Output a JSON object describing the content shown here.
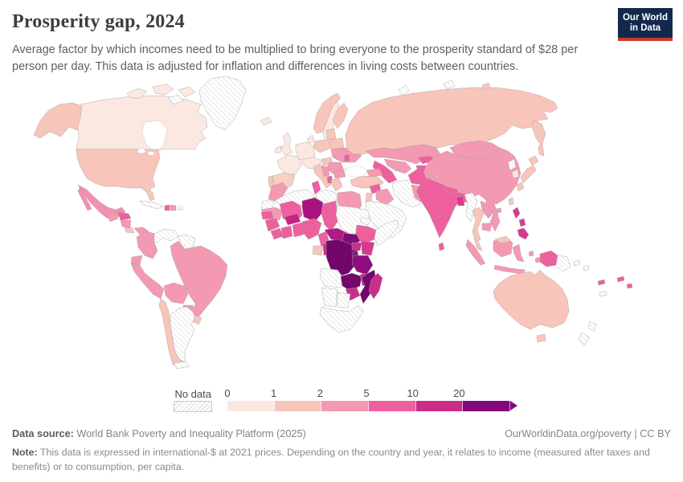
{
  "header": {
    "title": "Prosperity gap, 2024",
    "subtitle": "Average factor by which incomes need to be multiplied to bring everyone to the prosperity standard of $28 per person per day. This data is adjusted for inflation and differences in living costs between countries.",
    "logo": {
      "line1": "Our World",
      "line2": "in Data",
      "bg_color": "#12294d",
      "accent_color": "#c9382c"
    }
  },
  "legend": {
    "no_data_label": "No data",
    "ticks": [
      "0",
      "1",
      "2",
      "5",
      "10",
      "20"
    ],
    "bins": [
      {
        "range": "0-1",
        "color": "#fbe8e0"
      },
      {
        "range": "1-2",
        "color": "#f8c5ba"
      },
      {
        "range": "2-5",
        "color": "#f399b1"
      },
      {
        "range": "5-10",
        "color": "#ee5f9d"
      },
      {
        "range": "10-20",
        "color": "#cc2d8a"
      },
      {
        "range": "20+",
        "color": "#83077c"
      }
    ]
  },
  "footer": {
    "datasource_label": "Data source:",
    "datasource": " World Bank Poverty and Inequality Platform (2025)",
    "link": "OurWorldinData.org/poverty",
    "license_suffix": " | CC BY",
    "note_label": "Note:",
    "note": " This data is expressed in international-$ at 2021 prices. Depending on the country and year, it relates to income (measured after taxes and benefits) or to consumption, per capita."
  },
  "chart_data": {
    "type": "choropleth-map",
    "title": "Prosperity gap, 2024",
    "unit": "multiplication factor to reach $28 per person per day",
    "legend_bins": [
      "0-1",
      "1-2",
      "2-5",
      "5-10",
      "10-20",
      "20+",
      "no-data"
    ],
    "no_data_pattern": "diagonal-hatch",
    "countries": {
      "canada": {
        "name": "Canada",
        "bin": "0-1",
        "fill": "#fbe8e0"
      },
      "arctic-island-a": {
        "name": "Canadian Arctic islands",
        "bin": "0-1",
        "fill": "#fbe8e0"
      },
      "arctic-island-b": {
        "name": "Canadian Arctic islands",
        "bin": "0-1",
        "fill": "#fbe8e0"
      },
      "arctic-island-c": {
        "name": "Canadian Arctic islands",
        "bin": "0-1",
        "fill": "#fbe8e0"
      },
      "arctic-island-d": {
        "name": "Arctic island",
        "bin": "no-data",
        "fill": "hatch"
      },
      "greenland": {
        "name": "Greenland",
        "bin": "no-data",
        "fill": "hatch"
      },
      "alaska": {
        "name": "United States (Alaska)",
        "bin": "1-2",
        "fill": "#f8c5ba"
      },
      "usa": {
        "name": "United States",
        "bin": "1-2",
        "fill": "#f8c5ba"
      },
      "mexico": {
        "name": "Mexico",
        "bin": "2-5",
        "fill": "#f48fae"
      },
      "baja": {
        "name": "Mexico (Baja)",
        "bin": "2-5",
        "fill": "#f48fae"
      },
      "guatemala": {
        "name": "Guatemala",
        "bin": "2-5",
        "fill": "#f399b1"
      },
      "honduras": {
        "name": "Honduras",
        "bin": "5-10",
        "fill": "#ee5f9d"
      },
      "nicaragua": {
        "name": "Nicaragua",
        "bin": "2-5",
        "fill": "#f399b1"
      },
      "costarica": {
        "name": "Costa Rica",
        "bin": "1-2",
        "fill": "#f8c5ba"
      },
      "panama": {
        "name": "Panama",
        "bin": "2-5",
        "fill": "#f399b1"
      },
      "cuba": {
        "name": "Cuba",
        "bin": "no-data",
        "fill": "hatch"
      },
      "haiti": {
        "name": "Haiti",
        "bin": "5-10",
        "fill": "#ee5f9d"
      },
      "domrep": {
        "name": "Dominican Republic",
        "bin": "2-5",
        "fill": "#f399b1"
      },
      "puertorico": {
        "name": "Puerto Rico",
        "bin": "no-data",
        "fill": "hatch"
      },
      "colombia": {
        "name": "Colombia",
        "bin": "2-5",
        "fill": "#f399b1"
      },
      "venezuela": {
        "name": "Venezuela",
        "bin": "no-data",
        "fill": "hatch"
      },
      "guyanas": {
        "name": "Guyana and Suriname",
        "bin": "no-data",
        "fill": "hatch"
      },
      "brazil": {
        "name": "Brazil",
        "bin": "2-5",
        "fill": "#f399b1"
      },
      "ecuador": {
        "name": "Ecuador",
        "bin": "2-5",
        "fill": "#f399b1"
      },
      "peru": {
        "name": "Peru",
        "bin": "2-5",
        "fill": "#f399b1"
      },
      "bolivia": {
        "name": "Bolivia",
        "bin": "2-5",
        "fill": "#f399b1"
      },
      "paraguay": {
        "name": "Paraguay",
        "bin": "2-5",
        "fill": "#f399b1"
      },
      "chile": {
        "name": "Chile",
        "bin": "1-2",
        "fill": "#f8c5ba"
      },
      "argentina": {
        "name": "Argentina",
        "bin": "no-data",
        "fill": "hatch"
      },
      "uruguay": {
        "name": "Uruguay",
        "bin": "1-2",
        "fill": "#f8c5ba"
      },
      "tierradelfuego": {
        "name": "Tierra del Fuego",
        "bin": "no-data",
        "fill": "hatch"
      },
      "iceland": {
        "name": "Iceland",
        "bin": "0-1",
        "fill": "#fbe8e0"
      },
      "uk": {
        "name": "United Kingdom",
        "bin": "0-1",
        "fill": "#fbe8e0"
      },
      "ireland": {
        "name": "Ireland",
        "bin": "0-1",
        "fill": "#fbe8e0"
      },
      "norway": {
        "name": "Norway",
        "bin": "1-2",
        "fill": "#f8c5ba"
      },
      "sweden": {
        "name": "Sweden",
        "bin": "0-1",
        "fill": "#fbe8e0"
      },
      "finland": {
        "name": "Finland",
        "bin": "1-2",
        "fill": "#f8c5ba"
      },
      "denmark": {
        "name": "Denmark",
        "bin": "0-1",
        "fill": "#fbe8e0"
      },
      "france": {
        "name": "France",
        "bin": "0-1",
        "fill": "#fbe8e0"
      },
      "spain": {
        "name": "Spain",
        "bin": "1-2",
        "fill": "#f8cfc2"
      },
      "portugal": {
        "name": "Portugal",
        "bin": "1-2",
        "fill": "#f8c5ba"
      },
      "germany": {
        "name": "Germany and Benelux",
        "bin": "0-1",
        "fill": "#fbe8e0"
      },
      "centraleurope": {
        "name": "Czechia, Austria, Switzerland",
        "bin": "0-1",
        "fill": "#fbe8e0"
      },
      "hungary": {
        "name": "Hungary",
        "bin": "1-2",
        "fill": "#f8c5ba"
      },
      "italy": {
        "name": "Italy",
        "bin": "1-2",
        "fill": "#f8c5ba"
      },
      "poland": {
        "name": "Poland",
        "bin": "1-2",
        "fill": "#f8c5ba"
      },
      "baltics": {
        "name": "Baltic states",
        "bin": "1-2",
        "fill": "#f8c5ba"
      },
      "belarus": {
        "name": "Belarus",
        "bin": "1-2",
        "fill": "#f8c5ba"
      },
      "ukraine": {
        "name": "Ukraine",
        "bin": "2-5",
        "fill": "#f399b1"
      },
      "moldova": {
        "name": "Moldova",
        "bin": "5-10",
        "fill": "#ee5f9d"
      },
      "romania": {
        "name": "Romania",
        "bin": "2-5",
        "fill": "#f399b1"
      },
      "balkans": {
        "name": "Serbia and Western Balkans",
        "bin": "2-5",
        "fill": "#f399b1"
      },
      "albania": {
        "name": "Albania and North Macedonia",
        "bin": "5-10",
        "fill": "#ee5f9d"
      },
      "bulgaria": {
        "name": "Bulgaria",
        "bin": "2-5",
        "fill": "#f399b1"
      },
      "greece": {
        "name": "Greece",
        "bin": "1-2",
        "fill": "#f8c5ba"
      },
      "russia": {
        "name": "Russia",
        "bin": "1-2",
        "fill": "#f8c5ba"
      },
      "kamchatka": {
        "name": "Russia (Kamchatka)",
        "bin": "1-2",
        "fill": "#f8c5ba"
      },
      "sakhalin": {
        "name": "Russia (Sakhalin)",
        "bin": "1-2",
        "fill": "#f8c5ba"
      },
      "novaya": {
        "name": "Novaya Zemlya",
        "bin": "no-data",
        "fill": "hatch"
      },
      "severnaya": {
        "name": "Severnaya Zemlya",
        "bin": "no-data",
        "fill": "hatch"
      },
      "ne-island": {
        "name": "New Siberian Islands",
        "bin": "1-2",
        "fill": "#f8c5ba"
      },
      "turkey": {
        "name": "Turkey",
        "bin": "1-2",
        "fill": "#f8c5ba"
      },
      "caucasus": {
        "name": "Georgia and Azerbaijan",
        "bin": "2-5",
        "fill": "#f399b1"
      },
      "syria": {
        "name": "Syria",
        "bin": "5-10",
        "fill": "#ee5f9d"
      },
      "jordan-israel": {
        "name": "Israel and Jordan",
        "bin": "1-2",
        "fill": "#f8c5ba"
      },
      "iraq": {
        "name": "Iraq",
        "bin": "2-5",
        "fill": "#f399b1"
      },
      "iran": {
        "name": "Iran",
        "bin": "no-data",
        "fill": "hatch"
      },
      "arabia": {
        "name": "Arabian Peninsula",
        "bin": "no-data",
        "fill": "hatch"
      },
      "kazakhstan": {
        "name": "Kazakhstan",
        "bin": "2-5",
        "fill": "#f399b1"
      },
      "uzbekistan": {
        "name": "Uzbekistan",
        "bin": "2-5",
        "fill": "#f399b1"
      },
      "turkmenistan": {
        "name": "Turkmenistan",
        "bin": "5-10",
        "fill": "#ee5f9d"
      },
      "kyrgyzstan": {
        "name": "Kyrgyzstan",
        "bin": "5-10",
        "fill": "#ee5f9d"
      },
      "tajikistan": {
        "name": "Tajikistan",
        "bin": "5-10",
        "fill": "#ee5f9d"
      },
      "afghanistan": {
        "name": "Afghanistan",
        "bin": "5-10",
        "fill": "#ee5f9d"
      },
      "pakistan": {
        "name": "Pakistan",
        "bin": "2-5",
        "fill": "#f399b1"
      },
      "india": {
        "name": "India",
        "bin": "5-10",
        "fill": "#ee5f9d"
      },
      "nepal": {
        "name": "Nepal",
        "bin": "5-10",
        "fill": "#ee5f9d"
      },
      "bangladesh": {
        "name": "Bangladesh",
        "bin": "10-20",
        "fill": "#d63a8e"
      },
      "srilanka": {
        "name": "Sri Lanka",
        "bin": "5-10",
        "fill": "#ee5f9d"
      },
      "china": {
        "name": "China",
        "bin": "2-5",
        "fill": "#f399b1"
      },
      "mongolia": {
        "name": "Mongolia",
        "bin": "2-5",
        "fill": "#f399b1"
      },
      "nkorea": {
        "name": "North Korea",
        "bin": "no-data",
        "fill": "hatch"
      },
      "skorea": {
        "name": "South Korea",
        "bin": "0-1",
        "fill": "#fbe8e0"
      },
      "hokkaido": {
        "name": "Japan (Hokkaido)",
        "bin": "1-2",
        "fill": "#f8c5ba"
      },
      "honshu": {
        "name": "Japan (Honshu)",
        "bin": "1-2",
        "fill": "#f8c5ba"
      },
      "kyushu": {
        "name": "Japan (Kyushu)",
        "bin": "1-2",
        "fill": "#f8c5ba"
      },
      "taiwan": {
        "name": "Taiwan",
        "bin": "1-2",
        "fill": "#f8c5ba"
      },
      "hainan": {
        "name": "China (Hainan)",
        "bin": "2-5",
        "fill": "#f399b1"
      },
      "myanmar": {
        "name": "Myanmar",
        "bin": "no-data",
        "fill": "hatch"
      },
      "thailand": {
        "name": "Thailand",
        "bin": "1-2",
        "fill": "#f8c5ba"
      },
      "laos": {
        "name": "Laos",
        "bin": "2-5",
        "fill": "#f399b1"
      },
      "vietnam": {
        "name": "Vietnam",
        "bin": "2-5",
        "fill": "#f399b1"
      },
      "cambodia": {
        "name": "Cambodia",
        "bin": "2-5",
        "fill": "#f399b1"
      },
      "malaysia": {
        "name": "Malaysia (peninsula)",
        "bin": "1-2",
        "fill": "#f8c5ba"
      },
      "emalaysia": {
        "name": "Malaysia (Borneo)",
        "bin": "1-2",
        "fill": "#f8c5ba"
      },
      "sumatra": {
        "name": "Indonesia (Sumatra)",
        "bin": "2-5",
        "fill": "#f399b1"
      },
      "java": {
        "name": "Indonesia (Java)",
        "bin": "2-5",
        "fill": "#f399b1"
      },
      "borneo": {
        "name": "Indonesia (Kalimantan)",
        "bin": "2-5",
        "fill": "#f399b1"
      },
      "sulawesi": {
        "name": "Indonesia (Sulawesi)",
        "bin": "2-5",
        "fill": "#f399b1"
      },
      "moluccas-a": {
        "name": "Indonesia (Moluccas)",
        "bin": "2-5",
        "fill": "#f399b1"
      },
      "moluccas-b": {
        "name": "Indonesia (Moluccas)",
        "bin": "2-5",
        "fill": "#f399b1"
      },
      "wpapua": {
        "name": "Indonesia (Papua)",
        "bin": "5-10",
        "fill": "#ee5f9d"
      },
      "png": {
        "name": "Papua New Guinea",
        "bin": "no-data",
        "fill": "hatch"
      },
      "timor": {
        "name": "Timor",
        "bin": "no-data",
        "fill": "hatch"
      },
      "philippines-a": {
        "name": "Philippines (Luzon)",
        "bin": "10-20",
        "fill": "#d63a8e"
      },
      "philippines-b": {
        "name": "Philippines (Visayas)",
        "bin": "10-20",
        "fill": "#d63a8e"
      },
      "philippines-c": {
        "name": "Philippines (Mindanao)",
        "bin": "10-20",
        "fill": "#d63a8e"
      },
      "australia": {
        "name": "Australia",
        "bin": "1-2",
        "fill": "#f8c5ba"
      },
      "tasmania": {
        "name": "Australia (Tasmania)",
        "bin": "1-2",
        "fill": "#f8c5ba"
      },
      "nz-north": {
        "name": "New Zealand (North Island)",
        "bin": "no-data",
        "fill": "hatch"
      },
      "nz-south": {
        "name": "New Zealand (South Island)",
        "bin": "no-data",
        "fill": "hatch"
      },
      "solomon-a": {
        "name": "Solomon Islands",
        "bin": "no-data",
        "fill": "hatch"
      },
      "solomon-b": {
        "name": "Solomon Islands",
        "bin": "no-data",
        "fill": "hatch"
      },
      "vanuatu": {
        "name": "Vanuatu",
        "bin": "5-10",
        "fill": "#ee5f9d"
      },
      "fiji": {
        "name": "Fiji",
        "bin": "5-10",
        "fill": "#ee5f9d"
      },
      "pacific-isle": {
        "name": "Pacific island",
        "bin": "5-10",
        "fill": "#ee5f9d"
      },
      "newcaledonia": {
        "name": "New Caledonia",
        "bin": "no-data",
        "fill": "hatch"
      },
      "morocco": {
        "name": "Morocco",
        "bin": "2-5",
        "fill": "#f399b1"
      },
      "wsahara": {
        "name": "Western Sahara",
        "bin": "no-data",
        "fill": "hatch"
      },
      "algeria": {
        "name": "Algeria",
        "bin": "no-data",
        "fill": "hatch"
      },
      "tunisia": {
        "name": "Tunisia",
        "bin": "5-10",
        "fill": "#ee5f9d"
      },
      "libya": {
        "name": "Libya",
        "bin": "no-data",
        "fill": "hatch"
      },
      "egypt": {
        "name": "Egypt",
        "bin": "2-5",
        "fill": "#f399b1"
      },
      "mauritania": {
        "name": "Mauritania",
        "bin": "2-5",
        "fill": "#f399b1"
      },
      "mali": {
        "name": "Mali",
        "bin": "5-10",
        "fill": "#ee5f9d"
      },
      "niger": {
        "name": "Niger",
        "bin": "10-20",
        "fill": "#a8147f"
      },
      "chad": {
        "name": "Chad",
        "bin": "5-10",
        "fill": "#ee5f9d"
      },
      "sudan": {
        "name": "Sudan",
        "bin": "no-data",
        "fill": "hatch"
      },
      "eritrea": {
        "name": "Eritrea",
        "bin": "no-data",
        "fill": "hatch"
      },
      "ethiopia": {
        "name": "Ethiopia",
        "bin": "5-10",
        "fill": "#ee5f9d"
      },
      "somalia": {
        "name": "Somalia",
        "bin": "no-data",
        "fill": "hatch"
      },
      "senegal": {
        "name": "Senegal",
        "bin": "5-10",
        "fill": "#ee5f9d"
      },
      "guinea": {
        "name": "Guinea",
        "bin": "5-10",
        "fill": "#ee5f9d"
      },
      "sierraleone": {
        "name": "Sierra Leone and Liberia",
        "bin": "5-10",
        "fill": "#ee5f9d"
      },
      "ivorycoast": {
        "name": "Côte d'Ivoire",
        "bin": "5-10",
        "fill": "#ee5f9d"
      },
      "ghana": {
        "name": "Ghana, Togo and Benin",
        "bin": "5-10",
        "fill": "#ee5f9d"
      },
      "burkina": {
        "name": "Burkina Faso",
        "bin": "10-20",
        "fill": "#c92284"
      },
      "nigeria": {
        "name": "Nigeria",
        "bin": "5-10",
        "fill": "#ee5f9d"
      },
      "cameroon": {
        "name": "Cameroon",
        "bin": "5-10",
        "fill": "#ee5f9d"
      },
      "car": {
        "name": "Central African Republic",
        "bin": "10-20",
        "fill": "#b01c83"
      },
      "southsudan": {
        "name": "South Sudan",
        "bin": "20+",
        "fill": "#7e0b76"
      },
      "gabon": {
        "name": "Gabon",
        "bin": "1-2",
        "fill": "#f8c5ba"
      },
      "congo": {
        "name": "Congo",
        "bin": "10-20",
        "fill": "#cc2d8a"
      },
      "drc": {
        "name": "Democratic Republic of Congo",
        "bin": "20+",
        "fill": "#72066b"
      },
      "uganda": {
        "name": "Uganda",
        "bin": "10-20",
        "fill": "#cc2d8a"
      },
      "kenya": {
        "name": "Kenya",
        "bin": "10-20",
        "fill": "#d63a8e"
      },
      "rwanda-burundi": {
        "name": "Rwanda and Burundi",
        "bin": "20+",
        "fill": "#8a0f7f"
      },
      "tanzania": {
        "name": "Tanzania",
        "bin": "20+",
        "fill": "#8f0e7d"
      },
      "angola": {
        "name": "Angola",
        "bin": "no-data",
        "fill": "hatch"
      },
      "zambia": {
        "name": "Zambia",
        "bin": "20+",
        "fill": "#72066b"
      },
      "malawi": {
        "name": "Malawi",
        "bin": "10-20",
        "fill": "#cc2d8a"
      },
      "mozambique": {
        "name": "Mozambique",
        "bin": "20+",
        "fill": "#72066b"
      },
      "zimbabwe": {
        "name": "Zimbabwe",
        "bin": "10-20",
        "fill": "#cc2d8a"
      },
      "namibia": {
        "name": "Namibia",
        "bin": "no-data",
        "fill": "hatch"
      },
      "botswana": {
        "name": "Botswana",
        "bin": "no-data",
        "fill": "hatch"
      },
      "southafrica": {
        "name": "South Africa",
        "bin": "no-data",
        "fill": "hatch"
      },
      "madagascar": {
        "name": "Madagascar",
        "bin": "10-20",
        "fill": "#cc2d8a"
      }
    }
  }
}
